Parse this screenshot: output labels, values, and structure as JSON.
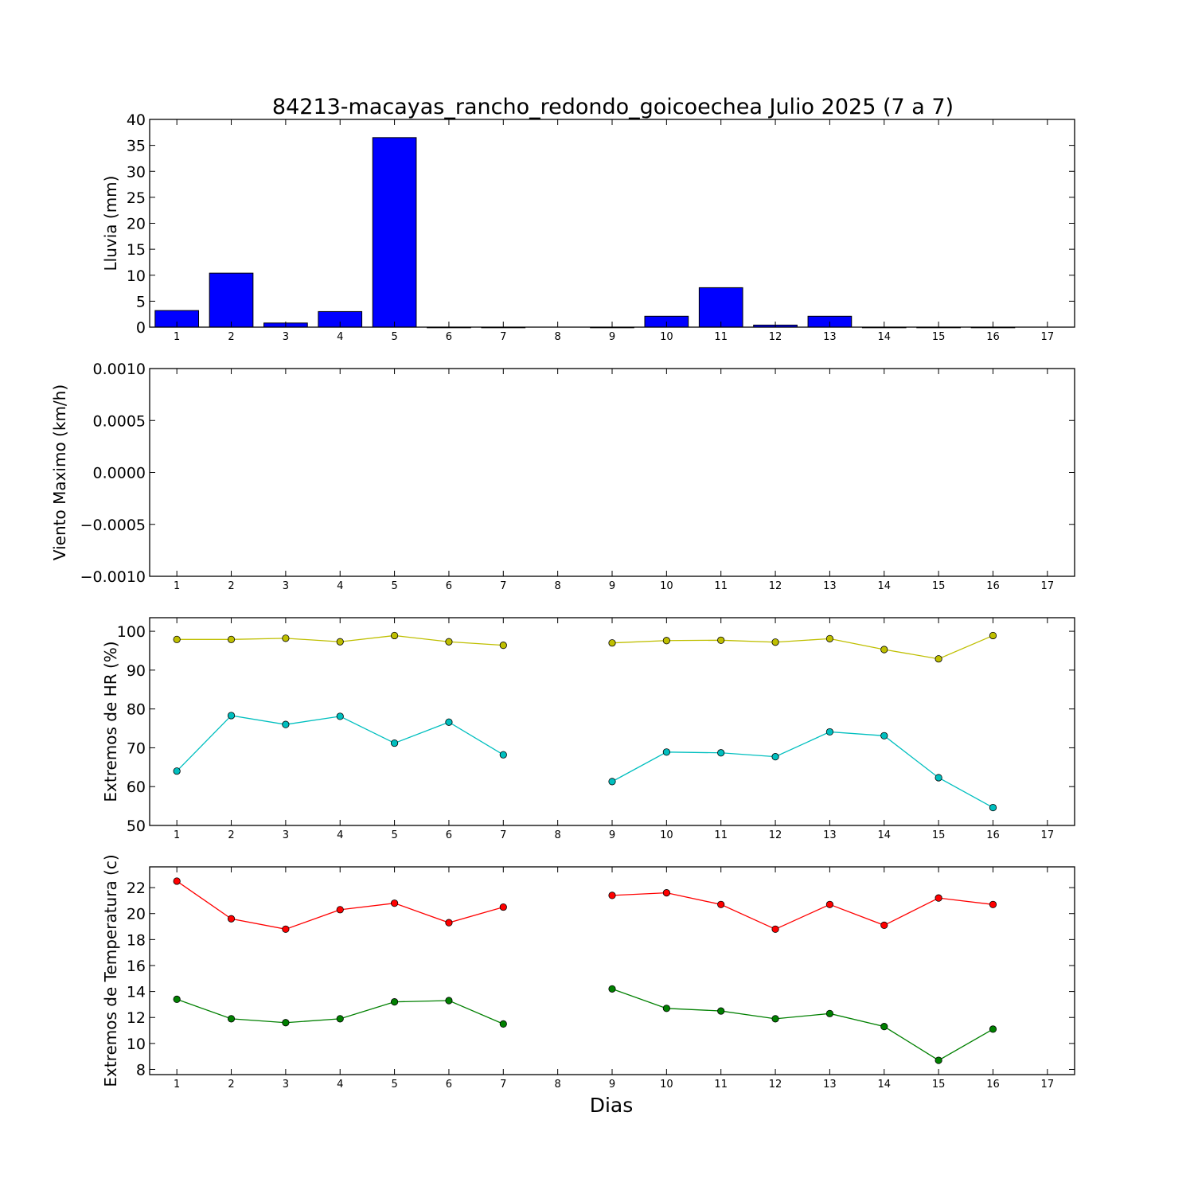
{
  "chart_data": {
    "type": "multi-panel",
    "title": "84213-macayas_rancho_redondo_goicoechea Julio 2025  (7 a 7)",
    "xlabel": "Dias",
    "x_ticks": [
      "1",
      "2",
      "3",
      "4",
      "5",
      "6",
      "7",
      "8",
      "9",
      "10",
      "11",
      "12",
      "13",
      "14",
      "15",
      "16",
      "17"
    ],
    "panels": [
      {
        "type": "bar",
        "ylabel": "Lluvia (mm)",
        "ylim": [
          0,
          40
        ],
        "yticks": [
          "0",
          "5",
          "10",
          "15",
          "20",
          "25",
          "30",
          "35",
          "40"
        ],
        "ytick_values": [
          0,
          5,
          10,
          15,
          20,
          25,
          30,
          35,
          40
        ],
        "x": [
          1,
          2,
          3,
          4,
          5,
          6,
          7,
          8,
          9,
          10,
          11,
          12,
          13,
          14,
          15,
          16
        ],
        "series": [
          {
            "color": "#0000ff",
            "values": [
              3.2,
              10.4,
              0.8,
              3.0,
              36.5,
              0.0,
              0.0,
              null,
              0.0,
              2.1,
              7.6,
              0.4,
              2.1,
              0.0,
              0.0,
              0.0
            ]
          }
        ]
      },
      {
        "type": "line",
        "ylabel": "Viento Maximo (km/h)",
        "ylim": [
          -0.001,
          0.001
        ],
        "yticks": [
          "−0.0010",
          "−0.0005",
          "0.0000",
          "0.0005",
          "0.0010"
        ],
        "ytick_values": [
          -0.001,
          -0.0005,
          0,
          0.0005,
          0.001
        ],
        "x": [],
        "series": []
      },
      {
        "type": "line",
        "ylabel": "Extremos de HR (%)",
        "ylim": [
          50,
          103.5
        ],
        "yticks": [
          "50",
          "60",
          "70",
          "80",
          "90",
          "100"
        ],
        "ytick_values": [
          50,
          60,
          70,
          80,
          90,
          100
        ],
        "x": [
          1,
          2,
          3,
          4,
          5,
          6,
          7,
          8,
          9,
          10,
          11,
          12,
          13,
          14,
          15,
          16
        ],
        "series": [
          {
            "color": "#bfbf00",
            "values": [
              97.9,
              97.9,
              98.2,
              97.3,
              98.9,
              97.3,
              96.4,
              null,
              97.0,
              97.6,
              97.7,
              97.2,
              98.1,
              95.3,
              92.9,
              98.9
            ]
          },
          {
            "color": "#00bfbf",
            "values": [
              64.0,
              78.3,
              76.0,
              78.1,
              71.2,
              76.6,
              68.2,
              null,
              61.3,
              68.9,
              68.7,
              67.7,
              74.1,
              73.1,
              62.3,
              54.6
            ]
          }
        ]
      },
      {
        "type": "line",
        "ylabel": "Extremos de Temperatura (c)",
        "ylim": [
          7.6,
          23.6
        ],
        "yticks": [
          "8",
          "10",
          "12",
          "14",
          "16",
          "18",
          "20",
          "22"
        ],
        "ytick_values": [
          8,
          10,
          12,
          14,
          16,
          18,
          20,
          22
        ],
        "x": [
          1,
          2,
          3,
          4,
          5,
          6,
          7,
          8,
          9,
          10,
          11,
          12,
          13,
          14,
          15,
          16
        ],
        "series": [
          {
            "color": "#ff0000",
            "values": [
              22.5,
              19.6,
              18.8,
              20.3,
              20.8,
              19.3,
              20.5,
              null,
              21.4,
              21.6,
              20.7,
              18.8,
              20.7,
              19.1,
              21.2,
              20.7
            ]
          },
          {
            "color": "#008000",
            "values": [
              13.4,
              11.9,
              11.6,
              11.9,
              13.2,
              13.3,
              11.5,
              null,
              14.2,
              12.7,
              12.5,
              11.9,
              12.3,
              11.3,
              8.7,
              11.1
            ]
          }
        ]
      }
    ]
  }
}
